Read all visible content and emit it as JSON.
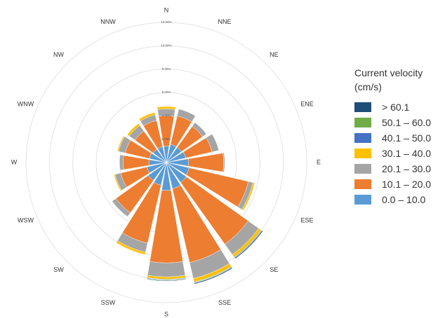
{
  "chart_data": {
    "type": "windrose",
    "title": "",
    "directions": [
      "N",
      "NNE",
      "NE",
      "ENE",
      "E",
      "ESE",
      "SE",
      "SSE",
      "S",
      "SSW",
      "SW",
      "WSW",
      "W",
      "WNW",
      "NW",
      "NNW"
    ],
    "radial_ticks": [
      "2.00%",
      "4.00%",
      "6.00%",
      "8.00%",
      "10.00%",
      "12.00%"
    ],
    "radial_max": 12,
    "gridlines": true,
    "legend": {
      "title": "Current velocity (cm/s)",
      "position": "right",
      "entries": [
        {
          "label": "> 60.1",
          "color": "#1f4e79"
        },
        {
          "label": "50.1 – 60.0",
          "color": "#70ad47"
        },
        {
          "label": "40.1 – 50.0",
          "color": "#4472c4"
        },
        {
          "label": "30.1 – 40.0",
          "color": "#ffc000"
        },
        {
          "label": "20.1 – 30.0",
          "color": "#a5a5a5"
        },
        {
          "label": "10.1 – 20.0",
          "color": "#ed7d31"
        },
        {
          "label": "0.0 – 10.0",
          "color": "#5b9bd5"
        }
      ]
    },
    "series": [
      {
        "name": "0.0 – 10.0",
        "values": [
          1.4,
          1.6,
          1.6,
          1.7,
          1.9,
          2.0,
          2.1,
          2.3,
          2.4,
          2.0,
          1.9,
          1.7,
          1.5,
          1.5,
          1.4,
          1.4
        ]
      },
      {
        "name": "10.1 – 20.0",
        "values": [
          2.6,
          2.5,
          2.2,
          2.3,
          3.0,
          5.2,
          6.5,
          6.5,
          6.2,
          5.1,
          3.4,
          2.3,
          2.2,
          2.1,
          1.9,
          2.3
        ]
      },
      {
        "name": "20.1 – 30.0",
        "values": [
          0.6,
          0.6,
          0.4,
          0.6,
          0.1,
          0.4,
          1.1,
          1.4,
          1.2,
          0.8,
          0.4,
          0.5,
          0.3,
          0.6,
          0.6,
          0.5
        ]
      },
      {
        "name": "30.1 – 40.0",
        "values": [
          0.2,
          0.0,
          0.0,
          0.0,
          0.0,
          0.15,
          0.25,
          0.3,
          0.2,
          0.2,
          0.0,
          0.1,
          0.0,
          0.1,
          0.2,
          0.2
        ]
      },
      {
        "name": "40.1 – 50.0",
        "values": [
          0.0,
          0.0,
          0.0,
          0.0,
          0.0,
          0.0,
          0.05,
          0.05,
          0.05,
          0.0,
          0.0,
          0.0,
          0.0,
          0.0,
          0.0,
          0.0
        ]
      },
      {
        "name": "50.1 – 60.0",
        "values": [
          0.0,
          0.0,
          0.0,
          0.0,
          0.0,
          0.0,
          0.05,
          0.05,
          0.05,
          0.0,
          0.0,
          0.0,
          0.0,
          0.0,
          0.0,
          0.0
        ]
      },
      {
        "name": "> 60.1",
        "values": [
          0.0,
          0.0,
          0.0,
          0.0,
          0.0,
          0.0,
          0.08,
          0.08,
          0.05,
          0.0,
          0.0,
          0.0,
          0.0,
          0.0,
          0.0,
          0.0
        ]
      }
    ]
  }
}
